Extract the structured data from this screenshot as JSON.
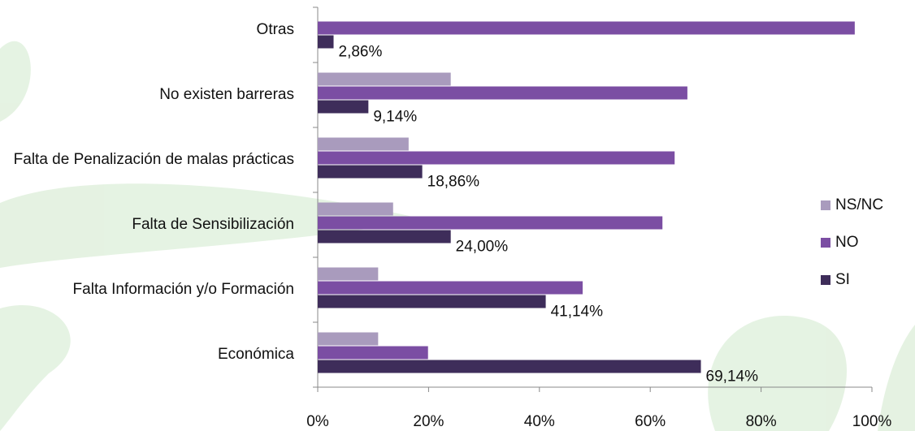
{
  "chart_data": {
    "type": "hbar",
    "categories": [
      "Otras",
      "No existen barreras",
      "Falta de Penalización de malas prácticas",
      "Falta de Sensibilización",
      "Falta Información y/o Formación",
      "Económica"
    ],
    "series": [
      {
        "name": "NS/NC",
        "color": "#a99bbd",
        "values": [
          0,
          24,
          16.4,
          13.6,
          10.9,
          10.9
        ]
      },
      {
        "name": "NO",
        "color": "#7b4ea3",
        "values": [
          96.9,
          66.7,
          64.4,
          62.2,
          47.8,
          19.9
        ]
      },
      {
        "name": "SI",
        "color": "#3e2d5a",
        "values": [
          2.86,
          9.14,
          18.86,
          24.0,
          41.14,
          69.14
        ],
        "value_labels": [
          "2,86%",
          "9,14%",
          "18,86%",
          "24,00%",
          "41,14%",
          "69,14%"
        ]
      }
    ],
    "xlim": [
      0,
      100
    ],
    "xticks": [
      {
        "value": 0,
        "label": "0%"
      },
      {
        "value": 20,
        "label": "20%"
      },
      {
        "value": 40,
        "label": "40%"
      },
      {
        "value": 60,
        "label": "60%"
      },
      {
        "value": 80,
        "label": "80%"
      },
      {
        "value": 100,
        "label": "100%"
      }
    ],
    "legend": "right"
  }
}
